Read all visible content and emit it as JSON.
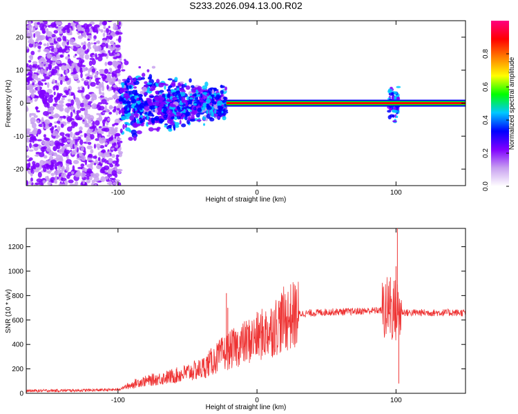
{
  "title": "S233.2026.094.13.00.R02",
  "chart_data": [
    {
      "type": "heatmap",
      "xlabel": "Height of straight line (km)",
      "ylabel": "Frequency (Hz)",
      "xlim": [
        -166,
        150
      ],
      "ylim": [
        -25,
        25
      ],
      "xticks": [
        -100,
        0,
        100
      ],
      "yticks": [
        -20,
        -10,
        0,
        10,
        20
      ],
      "xtick_labels": [
        "-100",
        "0",
        "100"
      ],
      "ytick_labels": [
        "-20",
        "-10",
        "0",
        "10",
        "20"
      ],
      "colorbar": {
        "label": "Normalized spectral amplitude",
        "range": [
          0,
          1
        ],
        "ticks": [
          0,
          0.2,
          0.4,
          0.6,
          0.8
        ],
        "tick_labels": [
          "0.0",
          "0.2",
          "0.4",
          "0.6",
          "0.8"
        ],
        "colors": [
          "#ffffff",
          "#c8a0f0",
          "#8000ff",
          "#0000ff",
          "#00c8ff",
          "#00ff00",
          "#ffff00",
          "#ff8000",
          "#ff0000",
          "#ff0080"
        ]
      },
      "features": [
        {
          "x_range": [
            -166,
            -98
          ],
          "description": "scattered noise",
          "freq_range": [
            -25,
            25
          ],
          "amplitude": 0.15
        },
        {
          "x_range": [
            -98,
            -22
          ],
          "description": "broadened signal",
          "freq_range": [
            -12,
            10
          ],
          "amplitude": 0.25
        },
        {
          "x_range": [
            -22,
            150
          ],
          "description": "carrier line",
          "freq": 0,
          "amplitude": 0.95
        },
        {
          "x_range": [
            95,
            102
          ],
          "description": "disturbance",
          "freq_range": [
            -5,
            6
          ],
          "amplitude": 0.3
        }
      ]
    },
    {
      "type": "line",
      "xlabel": "Height of straight line (km)",
      "ylabel": "SNR (10 * v/v)",
      "xlim": [
        -166,
        150
      ],
      "ylim": [
        0,
        1350
      ],
      "xticks": [
        -100,
        0,
        100
      ],
      "yticks": [
        0,
        200,
        400,
        600,
        800,
        1000,
        1200
      ],
      "xtick_labels": [
        "-100",
        "0",
        "100"
      ],
      "ytick_labels": [
        "0",
        "200",
        "400",
        "600",
        "800",
        "1000",
        "1200"
      ],
      "color": "#ee3333",
      "envelope": {
        "x": [
          -166,
          -120,
          -100,
          -85,
          -60,
          -40,
          -25,
          -15,
          0,
          10,
          20,
          30,
          50,
          70,
          90,
          95,
          102,
          108,
          150
        ],
        "y": [
          20,
          25,
          30,
          90,
          140,
          200,
          320,
          380,
          460,
          520,
          610,
          650,
          665,
          670,
          680,
          690,
          670,
          660,
          660
        ]
      },
      "spikes": [
        {
          "x": -22,
          "y": 820
        },
        {
          "x": -21,
          "y": 700
        },
        {
          "x": 96,
          "y": 950
        },
        {
          "x": 100,
          "y": 1040
        },
        {
          "x": 101,
          "y": 1350
        },
        {
          "x": 102,
          "y": 80
        }
      ]
    }
  ]
}
